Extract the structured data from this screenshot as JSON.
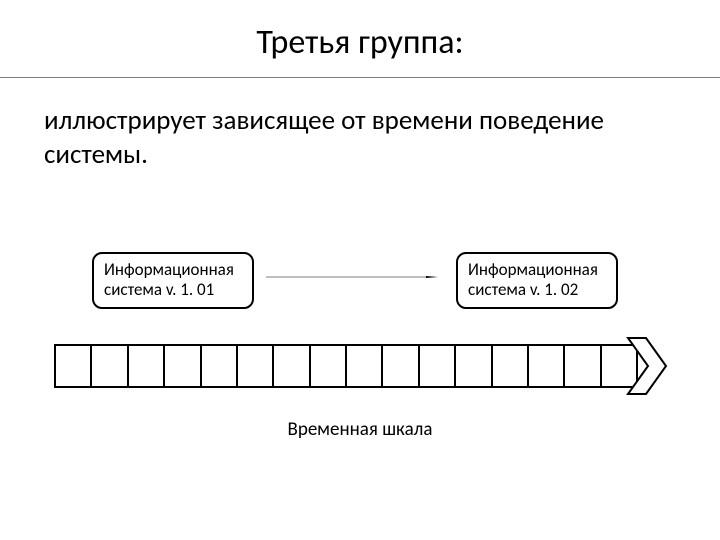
{
  "title": "Третья группа:",
  "subtitle": "иллюстрирует зависящее от времени поведение системы.",
  "boxes": {
    "left": {
      "line1": "Информационная",
      "line2": "система v. 1. 01"
    },
    "right": {
      "line1": "Информационная",
      "line2": "система v. 1. 02"
    }
  },
  "timeline": {
    "label": "Временная шкала",
    "segments": 16
  },
  "style": {
    "background": "#ffffff",
    "stroke": "#000000",
    "rule_color": "#808080",
    "title_fontsize": 34,
    "subtitle_fontsize": 27,
    "box_fontsize": 17,
    "label_fontsize": 19,
    "box_border_radius": 10,
    "stroke_width": 2
  }
}
